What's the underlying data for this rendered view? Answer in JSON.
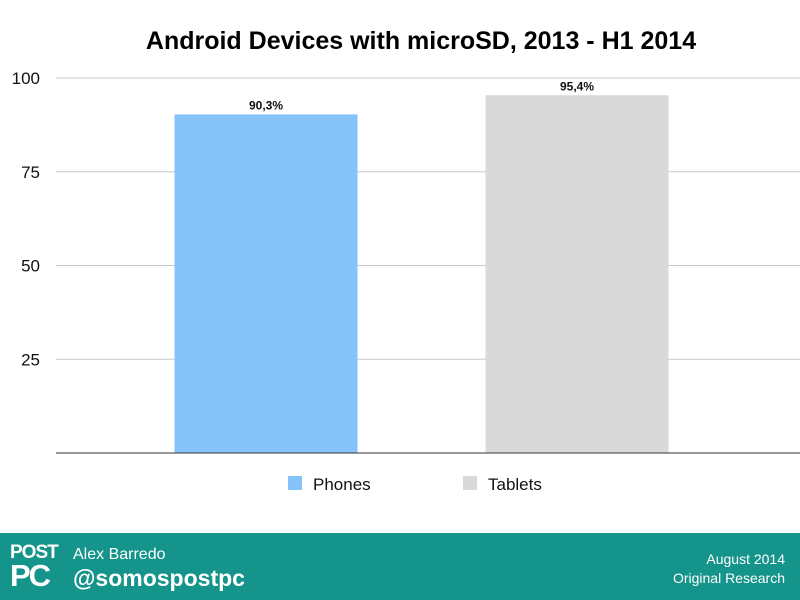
{
  "chart_data": {
    "type": "bar",
    "title": "Android Devices with microSD, 2013 - H1 2014",
    "categories": [
      "Phones",
      "Tablets"
    ],
    "values": [
      90.3,
      95.4
    ],
    "data_labels": [
      "90,3%",
      "95,4%"
    ],
    "colors": [
      "#86c3fb",
      "#d9d9d9"
    ],
    "ylim": [
      0,
      100
    ],
    "yticks": [
      25,
      50,
      75,
      100
    ],
    "ytick_labels": [
      "25",
      "50",
      "75",
      "100"
    ],
    "grid": true,
    "legend": {
      "placement": "bottom",
      "entries": [
        {
          "label": "Phones",
          "color": "#86c3fb"
        },
        {
          "label": "Tablets",
          "color": "#d9d9d9"
        }
      ]
    }
  },
  "footer": {
    "logo_line1": "POST",
    "logo_line2": "PC",
    "author": "Alex Barredo",
    "handle": "@somospostpc",
    "date": "August 2014",
    "note": "Original Research",
    "background": "#14948a"
  }
}
